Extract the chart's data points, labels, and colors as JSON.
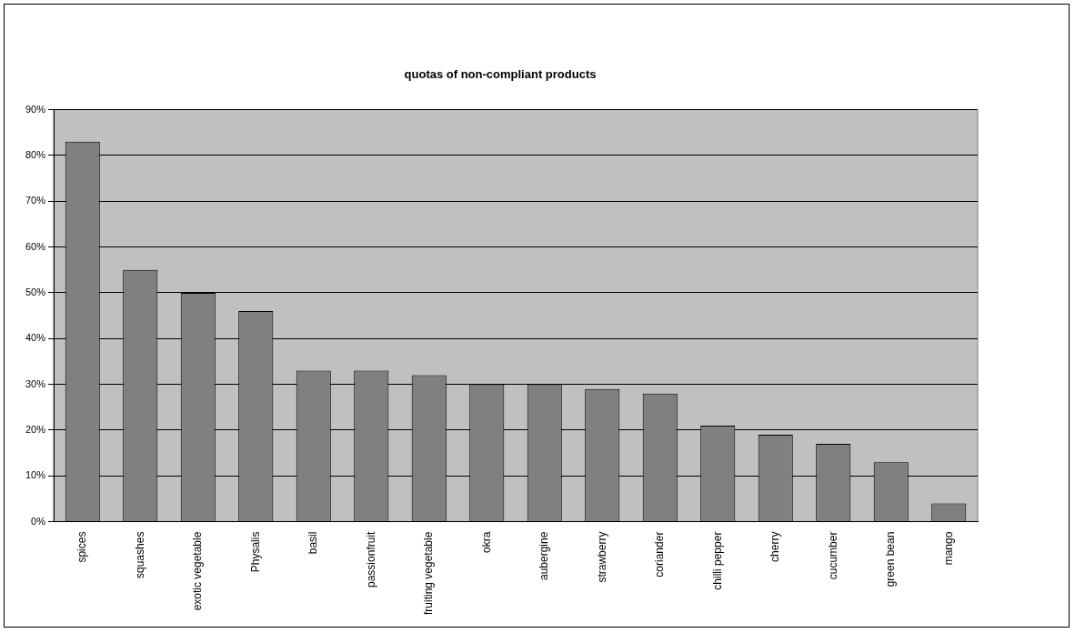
{
  "chart_data": {
    "type": "bar",
    "title": "quotas of non-compliant products",
    "categories": [
      "spices",
      "squashes",
      "exotic vegetable",
      "Physalis",
      "basil",
      "passionfruit",
      "fruiting vegetable",
      "okra",
      "aubergine",
      "strawberry",
      "coriander",
      "chilli pepper",
      "cherry",
      "cucumber",
      "green bean",
      "mango"
    ],
    "values": [
      83,
      55,
      50,
      46,
      33,
      33,
      32,
      30,
      30,
      29,
      28,
      21,
      19,
      17,
      13,
      4
    ],
    "color": "#808080",
    "ylim": [
      0,
      90
    ],
    "yticks": [
      {
        "value": 0,
        "label": "0%"
      },
      {
        "value": 10,
        "label": "10%"
      },
      {
        "value": 20,
        "label": "20%"
      },
      {
        "value": 30,
        "label": "30%"
      },
      {
        "value": 40,
        "label": "40%"
      },
      {
        "value": 50,
        "label": "50%"
      },
      {
        "value": 60,
        "label": "60%"
      },
      {
        "value": 70,
        "label": "70%"
      },
      {
        "value": 80,
        "label": "80%"
      },
      {
        "value": 90,
        "label": "90%"
      }
    ],
    "grid": "y",
    "legend": false
  }
}
